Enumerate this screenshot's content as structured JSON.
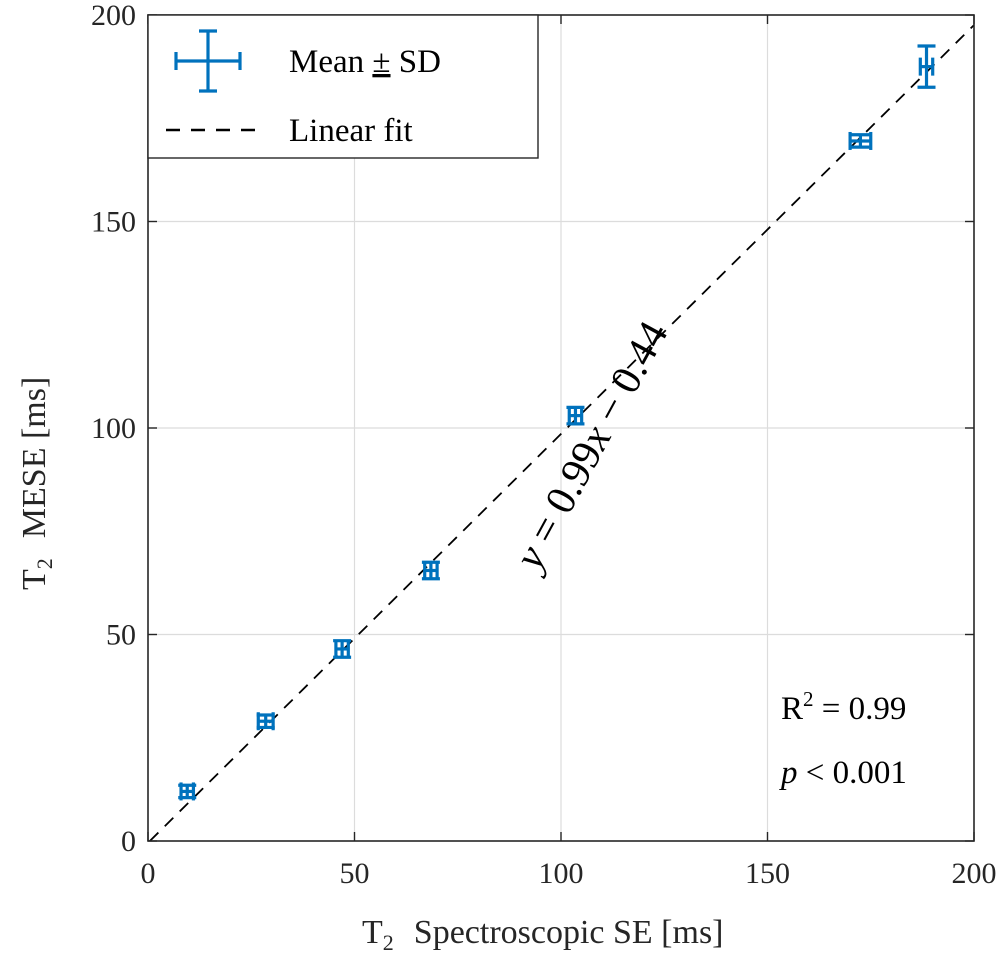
{
  "chart_data": {
    "type": "scatter",
    "xlabel": {
      "main": "T",
      "sub": "2",
      "rest": "Spectroscopic SE [ms]"
    },
    "ylabel": {
      "main": "T",
      "sub": "2",
      "rest": "MESE [ms]"
    },
    "xlim": [
      0,
      200
    ],
    "ylim": [
      0,
      200
    ],
    "xticks": [
      0,
      50,
      100,
      150,
      200
    ],
    "yticks": [
      0,
      50,
      100,
      150,
      200
    ],
    "grid": true,
    "legend_position": "top-left",
    "series": [
      {
        "name": "Mean ± SD",
        "kind": "errorbar",
        "color": "#0072BD",
        "points": [
          {
            "x": 9.5,
            "y": 12,
            "xerr": 1.5,
            "yerr": 1.5
          },
          {
            "x": 28.5,
            "y": 29,
            "xerr": 1.8,
            "yerr": 1.5
          },
          {
            "x": 47,
            "y": 46.5,
            "xerr": 1.5,
            "yerr": 2
          },
          {
            "x": 68.5,
            "y": 65.5,
            "xerr": 1.5,
            "yerr": 2
          },
          {
            "x": 103.5,
            "y": 103,
            "xerr": 1.5,
            "yerr": 2
          },
          {
            "x": 172.5,
            "y": 169.5,
            "xerr": 2.5,
            "yerr": 1.5
          },
          {
            "x": 188.5,
            "y": 187.5,
            "xerr": 1.5,
            "yerr": 5
          }
        ]
      },
      {
        "name": "Linear fit",
        "kind": "line",
        "style": "dashed",
        "color": "#000000",
        "slope": 0.99,
        "intercept": -0.44
      }
    ],
    "legend": {
      "errorbar_label": {
        "pre": "Mean ",
        "pm": "±",
        "post": " SD"
      },
      "fit_label": "Linear fit"
    },
    "annotations": {
      "equation": {
        "y": "y",
        "eq": " = 0.99",
        "x": "x",
        "rest": " − 0.44"
      },
      "r2": {
        "r": "R",
        "sup": "2",
        "rest": " = 0.99"
      },
      "p": {
        "p": "p",
        "rest": " < 0.001"
      }
    }
  }
}
